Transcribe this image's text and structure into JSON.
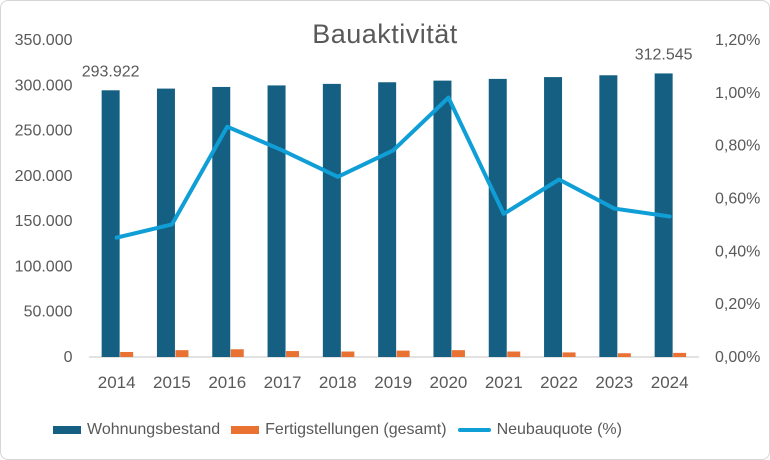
{
  "chart_data": {
    "type": "combo",
    "title": "Bauaktivität",
    "categories": [
      "2014",
      "2015",
      "2016",
      "2017",
      "2018",
      "2019",
      "2020",
      "2021",
      "2022",
      "2023",
      "2024"
    ],
    "series": [
      {
        "name": "Wohnungsbestand",
        "type": "bar",
        "axis": "left",
        "color": "#156082",
        "values": [
          293922,
          295800,
          297600,
          299300,
          301000,
          302800,
          304600,
          306500,
          308500,
          310500,
          312545
        ]
      },
      {
        "name": "Fertigstellungen (gesamt)",
        "type": "bar",
        "axis": "left",
        "color": "#E97132",
        "values": [
          5000,
          7000,
          8000,
          6000,
          5500,
          6500,
          7000,
          5500,
          4500,
          3600,
          4000
        ]
      },
      {
        "name": "Neubauquote (%)",
        "type": "line",
        "axis": "right",
        "color": "#0F9ED5",
        "values": [
          0.45,
          0.5,
          0.87,
          0.78,
          0.68,
          0.78,
          0.98,
          0.54,
          0.67,
          0.56,
          0.53
        ]
      }
    ],
    "left_axis": {
      "min": 0,
      "max": 350000,
      "ticks": [
        {
          "value": 0,
          "label": "0"
        },
        {
          "value": 50000,
          "label": "50.000"
        },
        {
          "value": 100000,
          "label": "100.000"
        },
        {
          "value": 150000,
          "label": "150.000"
        },
        {
          "value": 200000,
          "label": "200.000"
        },
        {
          "value": 250000,
          "label": "250.000"
        },
        {
          "value": 300000,
          "label": "300.000"
        },
        {
          "value": 350000,
          "label": "350.000"
        }
      ]
    },
    "right_axis": {
      "min": 0,
      "max": 1.2,
      "ticks": [
        {
          "value": 0,
          "label": "0,00%"
        },
        {
          "value": 0.2,
          "label": "0,20%"
        },
        {
          "value": 0.4,
          "label": "0,40%"
        },
        {
          "value": 0.6,
          "label": "0,60%"
        },
        {
          "value": 0.8,
          "label": "0,80%"
        },
        {
          "value": 1.0,
          "label": "1,00%"
        },
        {
          "value": 1.2,
          "label": "1,20%"
        }
      ]
    },
    "data_labels": [
      {
        "series_index": 0,
        "category_index": 0,
        "text": "293.922"
      },
      {
        "series_index": 0,
        "category_index": 10,
        "text": "312.545"
      }
    ],
    "legend_position": "bottom",
    "grid": false
  },
  "colors": {
    "axis_line": "#D9D9D9",
    "text": "#595959",
    "border": "#D6D6D6",
    "background": "#FFFFFF"
  }
}
